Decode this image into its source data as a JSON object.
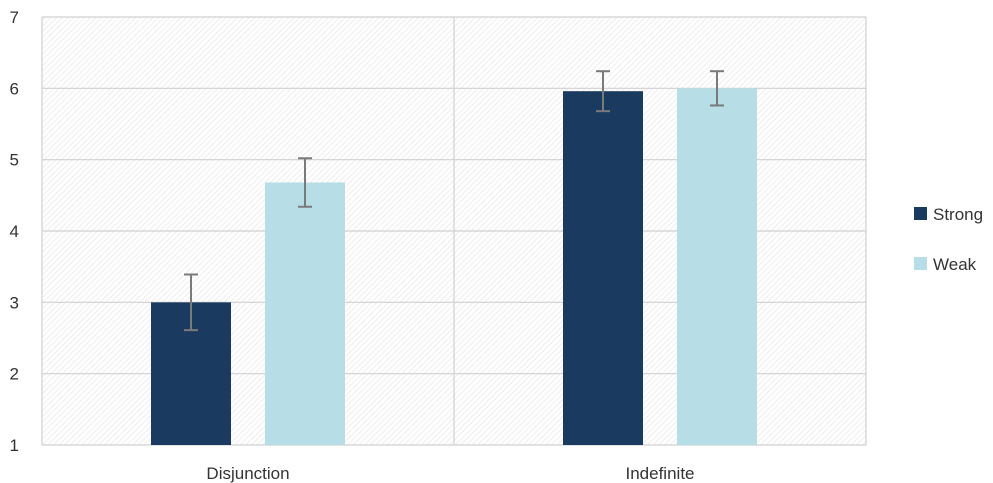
{
  "chart_data": {
    "type": "bar",
    "categories": [
      "Disjunction",
      "Indefinite"
    ],
    "series": [
      {
        "name": "Strong",
        "values": [
          3.0,
          5.96
        ],
        "error": [
          0.39,
          0.28
        ]
      },
      {
        "name": "Weak",
        "values": [
          4.68,
          6.0
        ],
        "error": [
          0.34,
          0.24
        ]
      }
    ],
    "ylim": [
      1,
      7
    ],
    "yticks": [
      1,
      2,
      3,
      4,
      5,
      6,
      7
    ],
    "grid": true,
    "legend_position": "right",
    "colors": {
      "Strong": "#1b3a5f",
      "Weak": "#b7dde6",
      "error": "#7a7a7a",
      "grid": "#d0d0d0"
    }
  }
}
